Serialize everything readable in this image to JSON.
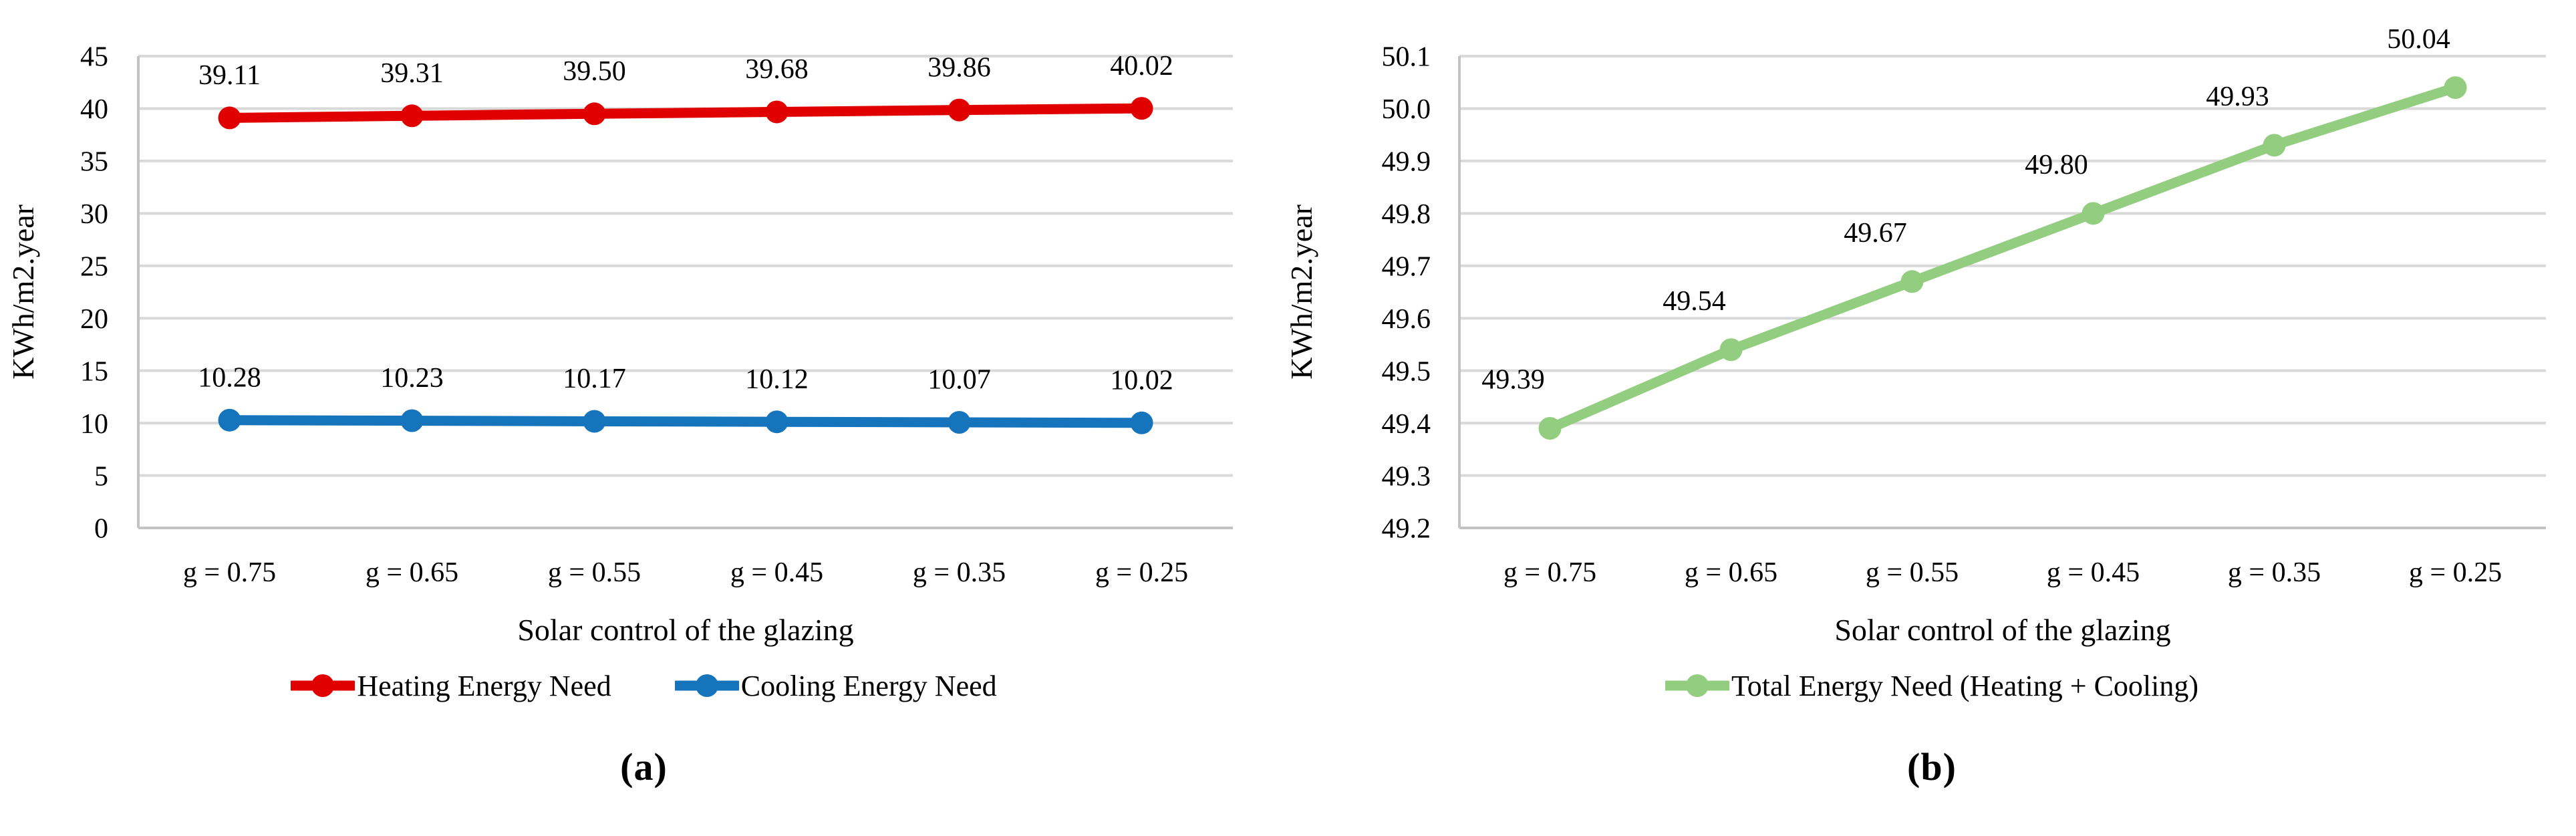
{
  "colors": {
    "heating": "#e00000",
    "cooling": "#1574bb",
    "total": "#93ce80",
    "gridline": "#d9d9d9",
    "axis_line": "#c3c3c3",
    "text": "#000000",
    "background": "#ffffff"
  },
  "chart_data": [
    {
      "type": "line",
      "panel": "a",
      "caption": "(a)",
      "title": "",
      "categories": [
        "g = 0.75",
        "g = 0.65",
        "g = 0.55",
        "g = 0.45",
        "g = 0.35",
        "g = 0.25"
      ],
      "xlabel": "Solar control of the glazing",
      "ylabel": "KWh/m2.year",
      "ylim": [
        0,
        45
      ],
      "ytick_step": 5,
      "ytick_decimals": 0,
      "grid": true,
      "legend_position": "bottom",
      "series": [
        {
          "name": "Heating Energy Need",
          "color": "#e00000",
          "values": [
            39.11,
            39.31,
            39.5,
            39.68,
            39.86,
            40.02
          ],
          "data_labels": [
            "39.11",
            "39.31",
            "39.50",
            "39.68",
            "39.86",
            "40.02"
          ]
        },
        {
          "name": "Cooling Energy Need",
          "color": "#1574bb",
          "values": [
            10.28,
            10.23,
            10.17,
            10.12,
            10.07,
            10.02
          ],
          "data_labels": [
            "10.28",
            "10.23",
            "10.17",
            "10.12",
            "10.07",
            "10.02"
          ]
        }
      ]
    },
    {
      "type": "line",
      "panel": "b",
      "caption": "(b)",
      "title": "",
      "categories": [
        "g = 0.75",
        "g = 0.65",
        "g = 0.55",
        "g = 0.45",
        "g = 0.35",
        "g = 0.25"
      ],
      "xlabel": "Solar control of the glazing",
      "ylabel": "KWh/m2.year",
      "ylim": [
        49.2,
        50.1
      ],
      "ytick_step": 0.1,
      "ytick_decimals": 1,
      "grid": true,
      "legend_position": "bottom",
      "series": [
        {
          "name": "Total Energy Need (Heating + Cooling)",
          "color": "#93ce80",
          "values": [
            49.39,
            49.54,
            49.67,
            49.8,
            49.93,
            50.04
          ],
          "data_labels": [
            "49.39",
            "49.54",
            "49.67",
            "49.80",
            "49.93",
            "50.04"
          ]
        }
      ]
    }
  ]
}
